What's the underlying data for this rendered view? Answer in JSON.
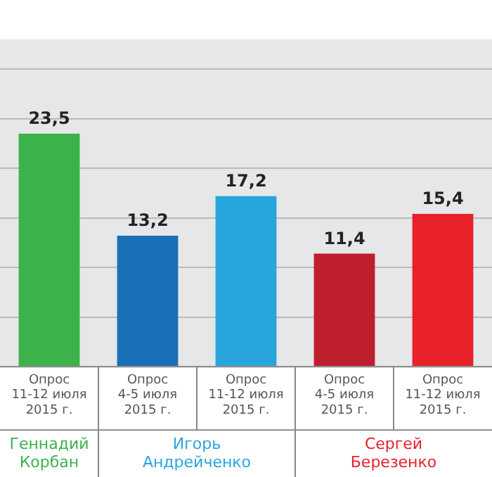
{
  "chart_data": {
    "type": "bar",
    "categories": [
      "Опрос\n11-12 июля\n2015 г.",
      "Опрос\n4-5 июля\n2015 г.",
      "Опрос\n11-12 июля\n2015 г.",
      "Опрос\n4-5 июля\n2015 г.",
      "Опрос\n11-12 июля\n2015 г."
    ],
    "values": [
      23.5,
      13.2,
      17.2,
      11.4,
      15.4
    ],
    "colors": [
      "#3bb34a",
      "#1b6fb8",
      "#29a5dd",
      "#bd1f2e",
      "#e8212b"
    ],
    "value_labels": [
      "23,5",
      "13,2",
      "17,2",
      "11,4",
      "15,4"
    ],
    "ylim": [
      0,
      33
    ],
    "yticks": [
      {
        "value": 0,
        "label": null
      },
      {
        "value": 5,
        "label": null
      },
      {
        "value": 10,
        "label": null
      },
      {
        "value": 15,
        "label": null
      },
      {
        "value": 20,
        "label": null
      },
      {
        "value": 25,
        "label": null
      },
      {
        "value": 30,
        "label": null
      }
    ],
    "grid": "y",
    "legend": false,
    "tick_labels": "x",
    "annotations": [
      "Геннадий\nКорбан",
      "Игорь\nАндрейченко",
      "Сергей\nБерезенко"
    ]
  }
}
